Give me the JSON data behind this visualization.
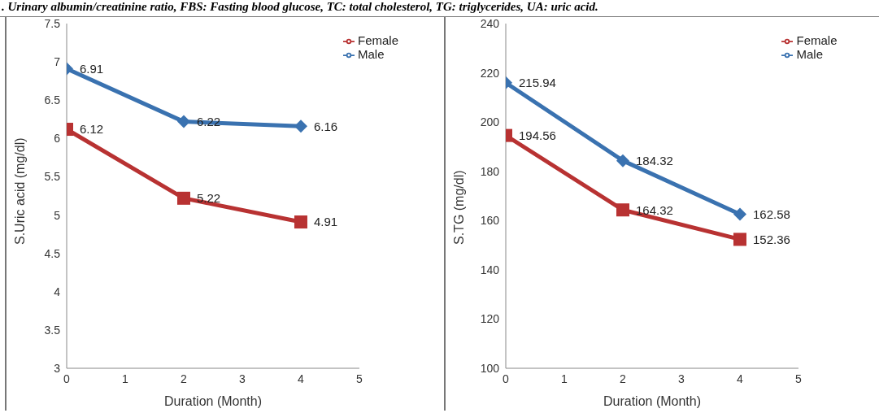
{
  "chart_data": [
    {
      "type": "line",
      "annotations": [
        ". Urinary albumin/creatinine ratio, FBS: Fasting blood glucose, TC: total cholesterol, TG: triglycerides, UA: uric acid."
      ],
      "xlabel": "Duration (Month)",
      "ylabel": "S.Uric acid (mg/dl)",
      "x": [
        0,
        2,
        4
      ],
      "xlim": [
        0,
        5
      ],
      "xticks": [
        0,
        1,
        2,
        3,
        4,
        5
      ],
      "ylim": [
        3,
        7.5
      ],
      "yticks": [
        3,
        3.5,
        4,
        4.5,
        5,
        5.5,
        6,
        6.5,
        7,
        7.5
      ],
      "grid": false,
      "legend": "top right",
      "data_labels": true,
      "series": [
        {
          "name": "Male",
          "color": "#3a72b0",
          "marker": "diamond",
          "values": [
            6.91,
            6.22,
            6.16
          ]
        },
        {
          "name": "Female",
          "color": "#b83232",
          "marker": "square",
          "values": [
            6.12,
            5.22,
            4.91
          ]
        }
      ]
    },
    {
      "type": "line",
      "xlabel": "Duration (Month)",
      "ylabel": "S.TG (mg/dl)",
      "x": [
        0,
        2,
        4
      ],
      "xlim": [
        0,
        5
      ],
      "xticks": [
        0,
        1,
        2,
        3,
        4,
        5
      ],
      "ylim": [
        100,
        240
      ],
      "yticks": [
        100,
        120,
        140,
        160,
        180,
        200,
        220,
        240
      ],
      "grid": false,
      "legend": "top right",
      "data_labels": true,
      "series": [
        {
          "name": "Male",
          "color": "#3a72b0",
          "marker": "diamond",
          "values": [
            215.94,
            184.32,
            162.58
          ]
        },
        {
          "name": "Female",
          "color": "#b83232",
          "marker": "square",
          "values": [
            194.56,
            164.32,
            152.36
          ]
        }
      ]
    }
  ]
}
